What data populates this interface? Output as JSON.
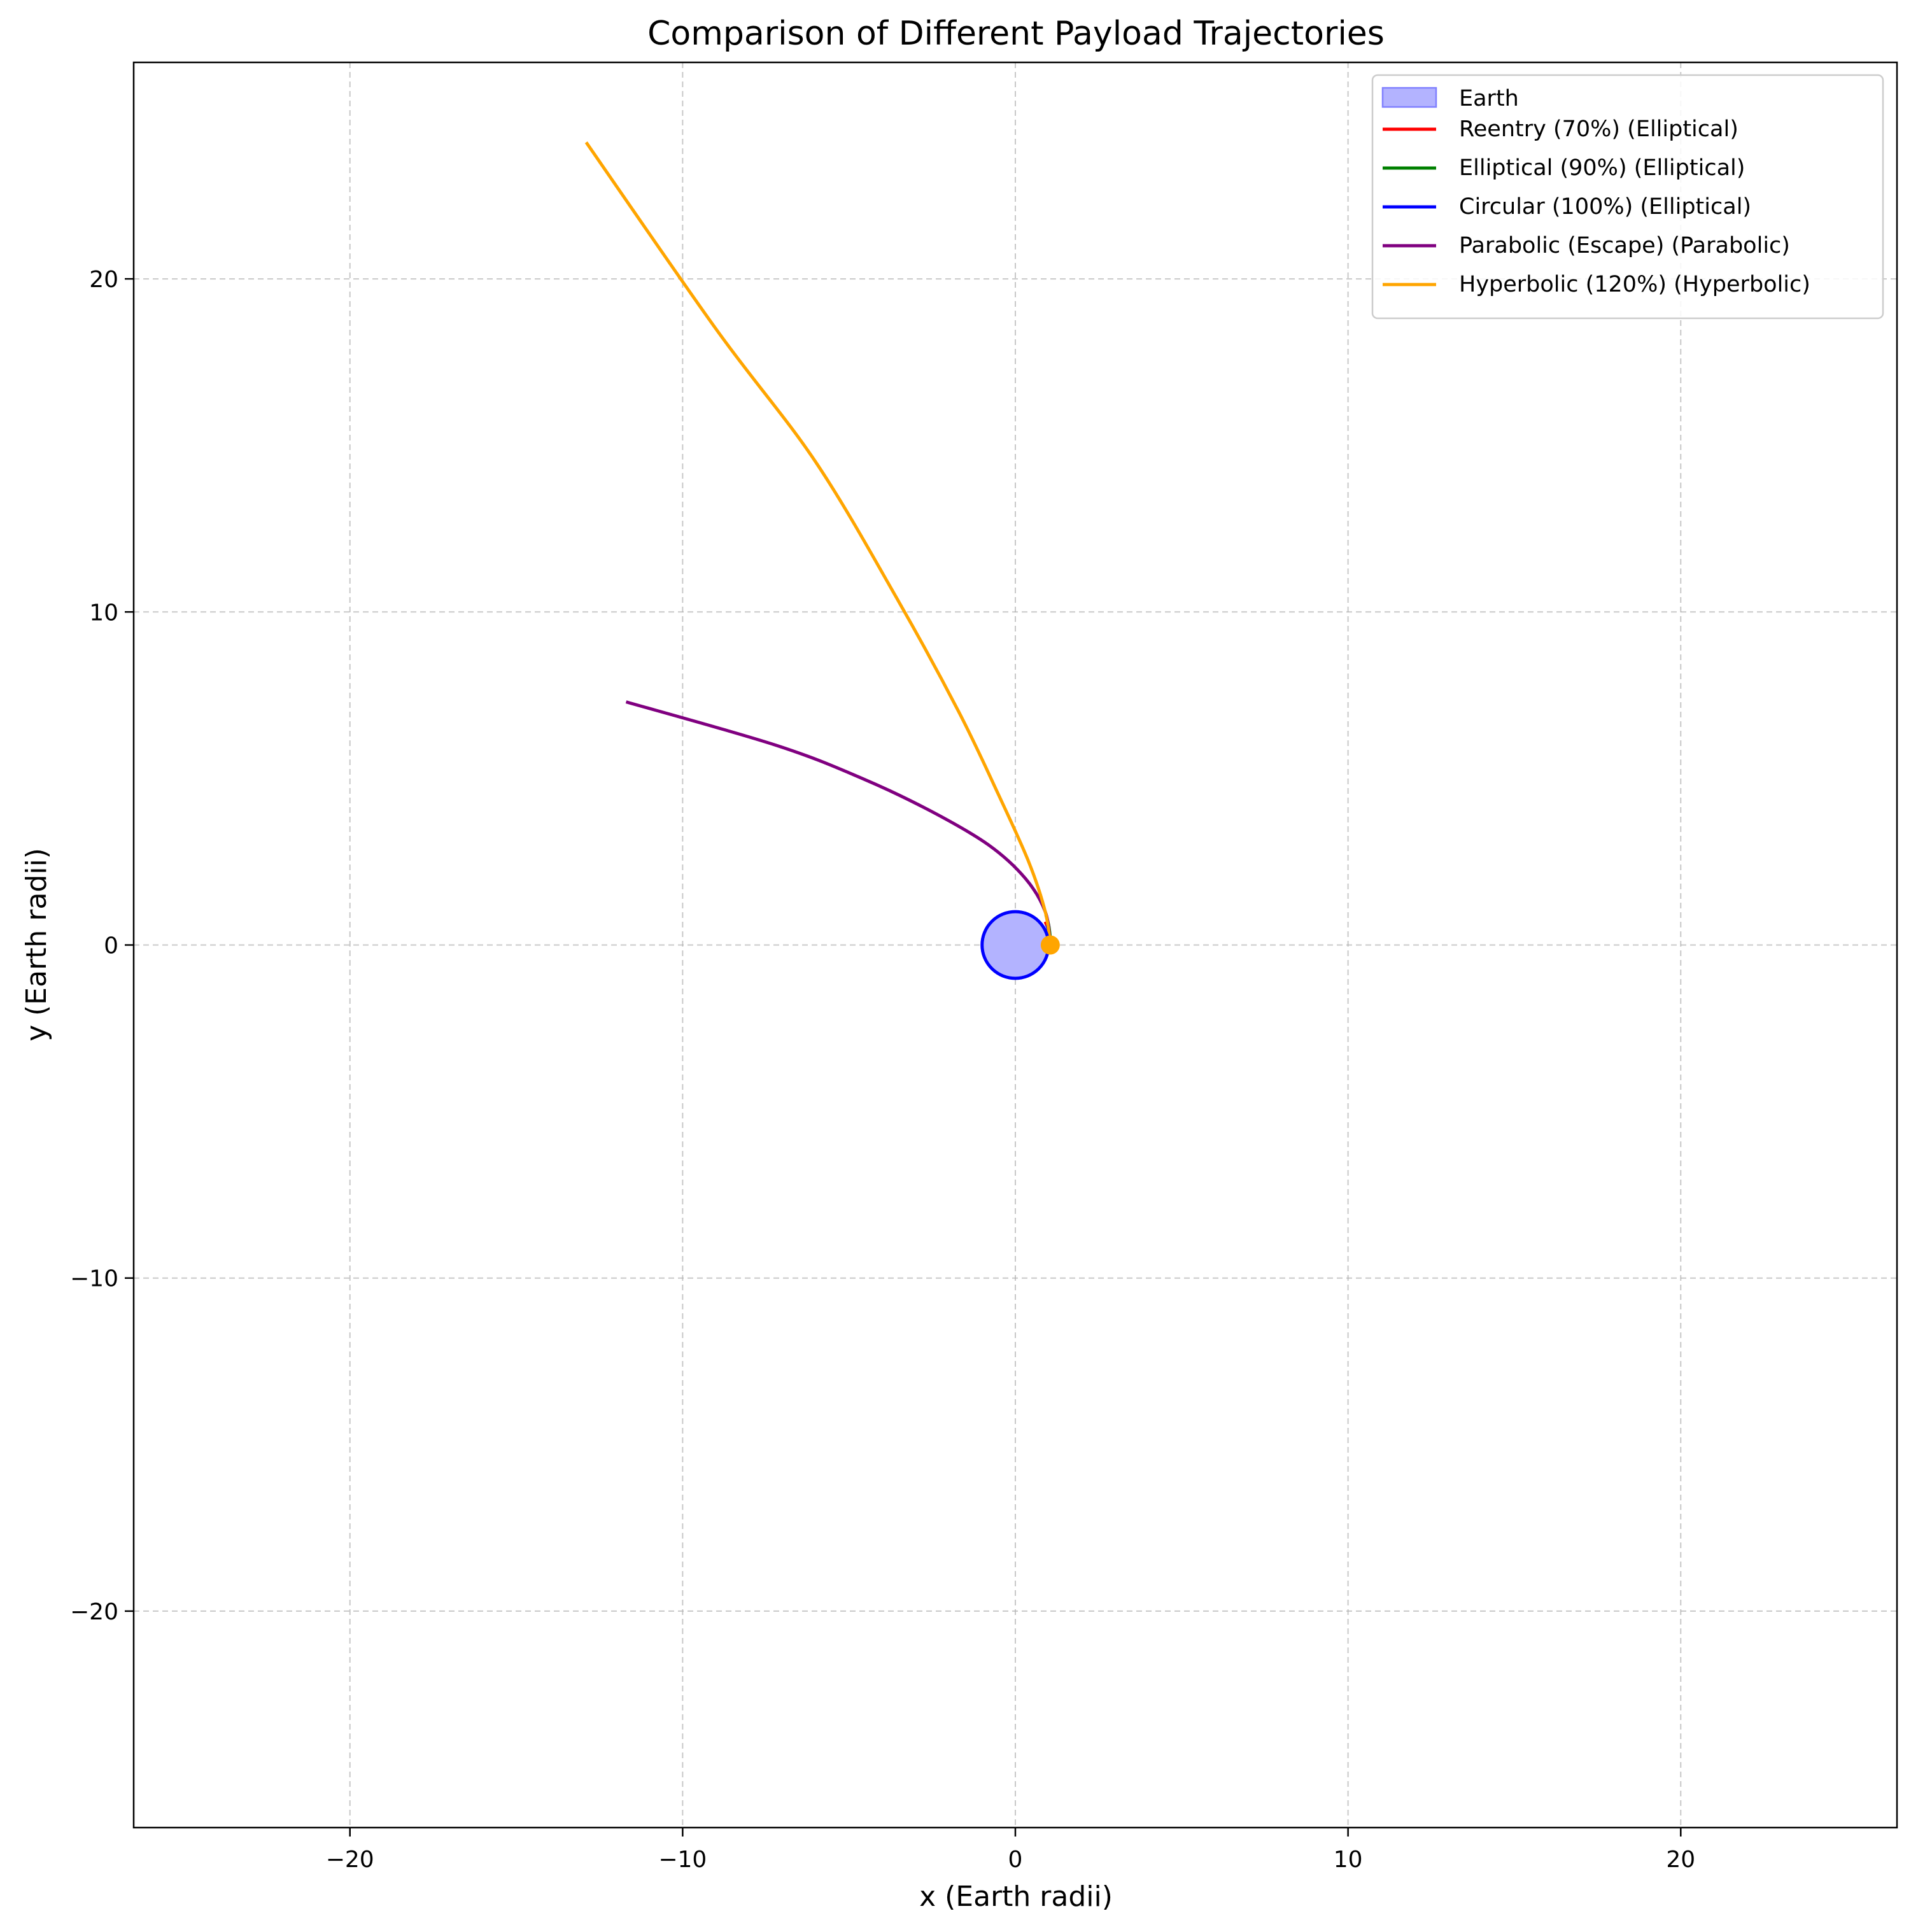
{
  "chart_data": {
    "type": "line",
    "title": "Comparison of Different Payload Trajectories",
    "xlabel": "x (Earth radii)",
    "ylabel": "y (Earth radii)",
    "xlim": [
      -26.5,
      26.5
    ],
    "ylim": [
      -26.5,
      26.5
    ],
    "x_ticks": [
      -20,
      -10,
      0,
      10,
      20
    ],
    "y_ticks": [
      -20,
      -10,
      0,
      10,
      20
    ],
    "x_tick_labels": [
      "−20",
      "−10",
      "0",
      "10",
      "20"
    ],
    "y_tick_labels": [
      "−20",
      "−10",
      "0",
      "10",
      "20"
    ],
    "grid": true,
    "legend_position": "top-right",
    "earth": {
      "label": "Earth",
      "center": [
        0,
        0
      ],
      "radius": 1,
      "fill_color": "#b3b3ff",
      "edge_color": "#0000ff"
    },
    "launch_point": {
      "x": 1.05,
      "y": 0,
      "color": "#ffa500"
    },
    "series": [
      {
        "name": "Reentry (70%) (Elliptical)",
        "color": "#ff0000",
        "points": [
          [
            1.05,
            0
          ],
          [
            1.03,
            0.25
          ],
          [
            0.98,
            0.5
          ],
          [
            0.9,
            0.7
          ]
        ]
      },
      {
        "name": "Elliptical (90%) (Elliptical)",
        "color": "#008000",
        "points": [
          [
            1.05,
            0
          ],
          [
            1.04,
            0.3
          ],
          [
            1.0,
            0.6
          ],
          [
            0.92,
            0.9
          ]
        ]
      },
      {
        "name": "Circular (100%) (Elliptical)",
        "color": "#0000ff",
        "points": [
          [
            1.05,
            0
          ],
          [
            1.04,
            0.2
          ],
          [
            1.0,
            0.4
          ],
          [
            0.95,
            0.6
          ]
        ]
      },
      {
        "name": "Parabolic (Escape) (Parabolic)",
        "color": "#800080",
        "points": [
          [
            1.05,
            0
          ],
          [
            0.9,
            1.0
          ],
          [
            0.3,
            2.0
          ],
          [
            -0.8,
            3.0
          ],
          [
            -2.5,
            4.0
          ],
          [
            -4.6,
            5.0
          ],
          [
            -7.2,
            6.0
          ],
          [
            -11.7,
            7.3
          ]
        ]
      },
      {
        "name": "Hyperbolic (120%) (Hyperbolic)",
        "color": "#ffa500",
        "points": [
          [
            1.05,
            0
          ],
          [
            0.9,
            1.0
          ],
          [
            0.4,
            2.5
          ],
          [
            -0.5,
            4.5
          ],
          [
            -1.7,
            7.0
          ],
          [
            -3.5,
            10.3
          ],
          [
            -6.0,
            14.5
          ],
          [
            -9.0,
            18.5
          ],
          [
            -12.9,
            24.1
          ]
        ]
      }
    ]
  }
}
